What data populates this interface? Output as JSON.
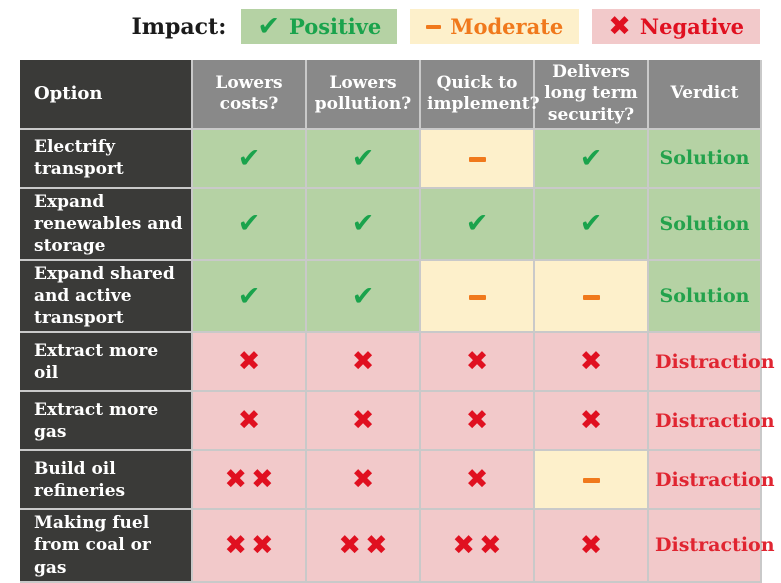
{
  "legend": {
    "label": "Impact:",
    "items": [
      {
        "name": "positive",
        "symbol": "check",
        "label": "Positive"
      },
      {
        "name": "moderate",
        "symbol": "dash",
        "label": "Moderate"
      },
      {
        "name": "negative",
        "symbol": "cross",
        "label": "Negative"
      }
    ]
  },
  "chart_data": {
    "type": "table",
    "columns": [
      "Option",
      "Lowers costs?",
      "Lowers pollution?",
      "Quick to implement?",
      "Delivers long term security?",
      "Verdict"
    ],
    "rows": [
      {
        "option": "Electrify transport",
        "marks": [
          "check",
          "check",
          "dash",
          "check"
        ],
        "verdict": "Solution"
      },
      {
        "option": "Expand renewables and storage",
        "marks": [
          "check",
          "check",
          "check",
          "check"
        ],
        "verdict": "Solution"
      },
      {
        "option": "Expand shared and active transport",
        "marks": [
          "check",
          "check",
          "dash",
          "dash"
        ],
        "verdict": "Solution"
      },
      {
        "option": "Extract more oil",
        "marks": [
          "cross",
          "cross",
          "cross",
          "cross"
        ],
        "verdict": "Distraction"
      },
      {
        "option": "Extract more gas",
        "marks": [
          "cross",
          "cross",
          "cross",
          "cross"
        ],
        "verdict": "Distraction"
      },
      {
        "option": "Build oil refineries",
        "marks": [
          "cross2",
          "cross",
          "cross",
          "dash"
        ],
        "verdict": "Distraction"
      },
      {
        "option": "Making fuel from coal or gas",
        "marks": [
          "cross2",
          "cross2",
          "cross2",
          "cross"
        ],
        "verdict": "Distraction"
      }
    ]
  },
  "colors": {
    "charcoal": "#3a3a38",
    "header_gray": "#898989",
    "green_cell": "#b5d2a4",
    "yellow_cell": "#fdf0cb",
    "pink_cell": "#f2c9ca",
    "check_green": "#1aa34c",
    "cross_red": "#e01020",
    "dash_orange": "#f0791c",
    "solution_green": "#23a24c",
    "distraction_red": "#e02531",
    "grid": "#c9c9c9"
  }
}
